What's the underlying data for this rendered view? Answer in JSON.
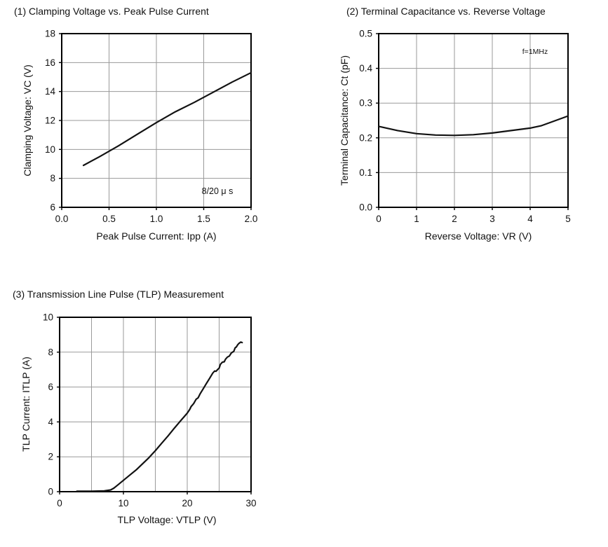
{
  "page": {
    "background": "#ffffff",
    "text_color": "#111111",
    "grid_color": "#9a9a9a",
    "curve_color": "#121212"
  },
  "chart_data": [
    {
      "type": "line",
      "title": "(1) Clamping Voltage vs. Peak Pulse Current",
      "xlabel": "Peak Pulse Current: Ipp (A)",
      "ylabel": "Clamping Voltage: VC (V)",
      "annotation": "8/20 μ s",
      "xlim": [
        0.0,
        2.0
      ],
      "ylim": [
        6,
        18
      ],
      "xticks": [
        0.0,
        0.5,
        1.0,
        1.5,
        2.0
      ],
      "xtick_labels": [
        "0.0",
        "0.5",
        "1.0",
        "1.5",
        "2.0"
      ],
      "yticks": [
        6,
        8,
        10,
        12,
        14,
        16,
        18
      ],
      "ytick_labels": [
        "6",
        "8",
        "10",
        "12",
        "14",
        "16",
        "18"
      ],
      "xgrid": [
        0.5,
        1.0,
        1.5
      ],
      "ygrid": [
        8,
        10,
        12,
        14,
        16
      ],
      "grid": true,
      "legend": "none",
      "points": [
        [
          0.23,
          8.9
        ],
        [
          0.4,
          9.5
        ],
        [
          0.6,
          10.25
        ],
        [
          0.8,
          11.05
        ],
        [
          1.0,
          11.85
        ],
        [
          1.2,
          12.6
        ],
        [
          1.4,
          13.25
        ],
        [
          1.6,
          13.95
        ],
        [
          1.8,
          14.65
        ],
        [
          2.0,
          15.3
        ]
      ]
    },
    {
      "type": "line",
      "title": "(2) Terminal Capacitance vs. Reverse Voltage",
      "xlabel": "Reverse Voltage: VR (V)",
      "ylabel": "Terminal Capacitance: Ct (pF)",
      "annotation": "f=1MHz",
      "xlim": [
        0,
        5
      ],
      "ylim": [
        0.0,
        0.5
      ],
      "xticks": [
        0,
        1,
        2,
        3,
        4,
        5
      ],
      "xtick_labels": [
        "0",
        "1",
        "2",
        "3",
        "4",
        "5"
      ],
      "yticks": [
        0.0,
        0.1,
        0.2,
        0.3,
        0.4,
        0.5
      ],
      "ytick_labels": [
        "0.0",
        "0.1",
        "0.2",
        "0.3",
        "0.4",
        "0.5"
      ],
      "xgrid": [
        1,
        2,
        3,
        4
      ],
      "ygrid": [
        0.1,
        0.2,
        0.3,
        0.4
      ],
      "grid": true,
      "legend": "none",
      "points": [
        [
          0,
          0.233
        ],
        [
          0.5,
          0.221
        ],
        [
          1,
          0.212
        ],
        [
          1.5,
          0.208
        ],
        [
          2,
          0.207
        ],
        [
          2.5,
          0.209
        ],
        [
          3,
          0.214
        ],
        [
          3.5,
          0.221
        ],
        [
          4,
          0.228
        ],
        [
          4.3,
          0.235
        ],
        [
          4.6,
          0.247
        ],
        [
          5,
          0.263
        ]
      ]
    },
    {
      "type": "line",
      "title": "(3) Transmission Line Pulse (TLP) Measurement",
      "xlabel": "TLP Voltage: VTLP (V)",
      "ylabel": "TLP Current: ITLP (A)",
      "annotation": "",
      "xlim": [
        0,
        30
      ],
      "ylim": [
        0,
        10
      ],
      "xticks": [
        0,
        10,
        20,
        30
      ],
      "xtick_labels": [
        "0",
        "10",
        "20",
        "30"
      ],
      "yticks": [
        0,
        2,
        4,
        6,
        8,
        10
      ],
      "ytick_labels": [
        "0",
        "2",
        "4",
        "6",
        "8",
        "10"
      ],
      "xgrid": [
        5,
        10,
        15,
        20,
        25
      ],
      "ygrid": [
        2,
        4,
        6,
        8
      ],
      "grid": true,
      "legend": "none",
      "points": [
        [
          2.7,
          0.03
        ],
        [
          5,
          0.03
        ],
        [
          7,
          0.05
        ],
        [
          8,
          0.1
        ],
        [
          8.5,
          0.2
        ],
        [
          9,
          0.35
        ],
        [
          10,
          0.65
        ],
        [
          11,
          0.95
        ],
        [
          12,
          1.25
        ],
        [
          13,
          1.6
        ],
        [
          14,
          1.95
        ],
        [
          15,
          2.35
        ],
        [
          16,
          2.78
        ],
        [
          17,
          3.2
        ],
        [
          18,
          3.65
        ],
        [
          19,
          4.08
        ],
        [
          20,
          4.5
        ],
        [
          20.4,
          4.72
        ],
        [
          20.6,
          4.88
        ],
        [
          21,
          5.05
        ],
        [
          21.4,
          5.3
        ],
        [
          21.7,
          5.38
        ],
        [
          22,
          5.6
        ],
        [
          22.5,
          5.9
        ],
        [
          23,
          6.2
        ],
        [
          23.5,
          6.5
        ],
        [
          24,
          6.8
        ],
        [
          24.3,
          6.92
        ],
        [
          24.5,
          6.9
        ],
        [
          24.8,
          7.02
        ],
        [
          25,
          7.08
        ],
        [
          25.2,
          7.3
        ],
        [
          25.5,
          7.42
        ],
        [
          25.8,
          7.45
        ],
        [
          26,
          7.6
        ],
        [
          26.3,
          7.72
        ],
        [
          26.6,
          7.78
        ],
        [
          26.9,
          7.95
        ],
        [
          27.1,
          8.0
        ],
        [
          27.3,
          8.05
        ],
        [
          27.5,
          8.25
        ],
        [
          27.7,
          8.3
        ],
        [
          27.9,
          8.42
        ],
        [
          28.1,
          8.5
        ],
        [
          28.4,
          8.58
        ],
        [
          28.6,
          8.55
        ]
      ]
    }
  ]
}
